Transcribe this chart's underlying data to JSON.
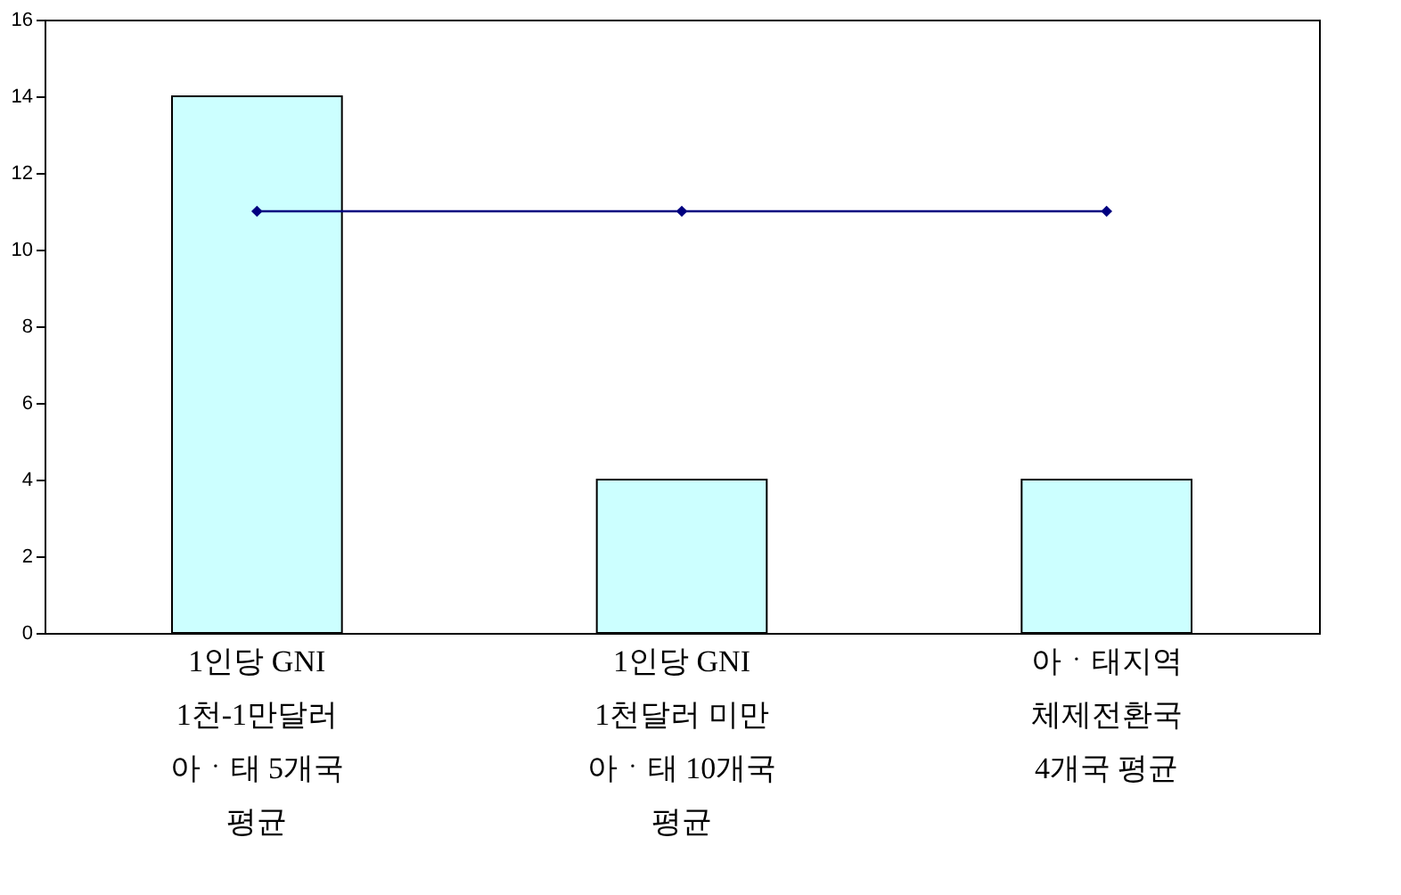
{
  "chart_data": {
    "type": "bar",
    "categories": [
      "1인당 GNI\n1천-1만달러\n아ㆍ태 5개국\n평균",
      "1인당 GNI\n1천달러 미만\n아ㆍ태 10개국\n평균",
      "아ㆍ태지역\n체제전환국\n4개국 평균"
    ],
    "series": [
      {
        "color": "#ccffff",
        "values": [
          14,
          4,
          4
        ]
      },
      {
        "type": "line",
        "color": "#000080",
        "values": [
          11,
          11,
          11
        ],
        "marker": "diamond",
        "line_style": "solid"
      }
    ],
    "ylim": [
      0,
      16
    ],
    "yticks": [
      0,
      2,
      4,
      6,
      8,
      10,
      12,
      14,
      16
    ],
    "grid": false
  }
}
